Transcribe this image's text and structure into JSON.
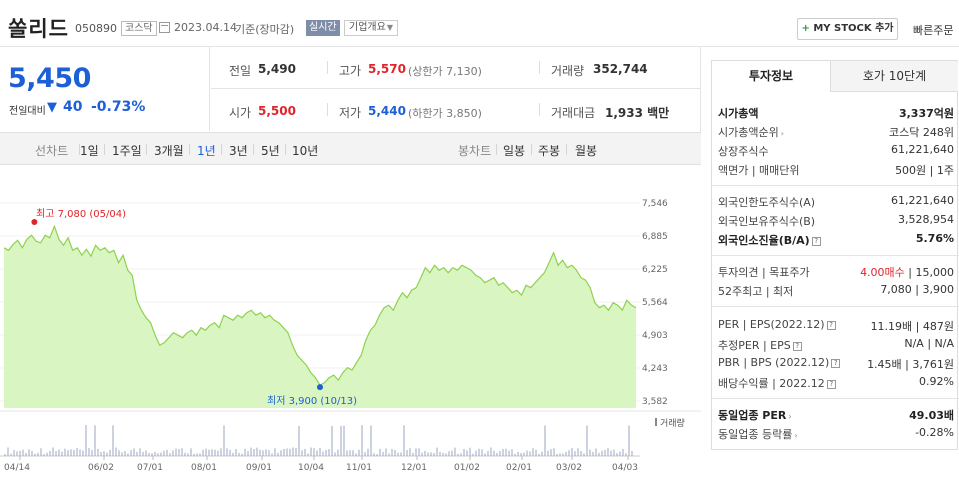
{
  "header": {
    "stock_name": "쏠리드",
    "stock_code": "050890",
    "market": "코스닥",
    "as_of_date": "2023.04.14",
    "as_of_suffix": "기준(장마감)",
    "realtime_label": "실시간",
    "company_overview": "기업개요",
    "my_stock_button": "MY STOCK 추가",
    "quick_order": "빠른주문"
  },
  "price": {
    "current": "5,450",
    "change_label": "전일대비",
    "change_value": "40",
    "change_rate": "-0.73%"
  },
  "quotes": {
    "prev_close_label": "전일",
    "prev_close": "5,490",
    "high_label": "고가",
    "high": "5,570",
    "upper_limit": "(상한가 7,130)",
    "volume_label": "거래량",
    "volume": "352,744",
    "open_label": "시가",
    "open": "5,500",
    "low_label": "저가",
    "low": "5,440",
    "lower_limit": "(하한가 3,850)",
    "amount_label": "거래대금",
    "amount": "1,933 백만"
  },
  "toolbar": {
    "line_chart": "선차트",
    "periods": [
      "1일",
      "1주일",
      "3개월",
      "1년",
      "3년",
      "5년",
      "10년"
    ],
    "selected_period": "1년",
    "candle_chart": "봉차트",
    "candles": [
      "일봉",
      "주봉",
      "월봉"
    ]
  },
  "chart_data": {
    "type": "area",
    "y_ticks": [
      "7,546",
      "6,885",
      "6,225",
      "5,564",
      "4,903",
      "4,243",
      "3,582"
    ],
    "ylim": [
      3582,
      7546
    ],
    "x_ticks": [
      "04/14",
      "06/02",
      "07/01",
      "08/01",
      "09/01",
      "10/04",
      "11/01",
      "12/01",
      "01/02",
      "02/01",
      "03/02",
      "04/03"
    ],
    "max_label": "최고 7,080 (05/04)",
    "min_label": "최저 3,900 (10/13)",
    "volume_legend": "거래량",
    "series_color": "#8fd14f",
    "fill_color": "#d9f5c2",
    "price": [
      6650,
      6600,
      6720,
      6800,
      6650,
      6820,
      6900,
      6780,
      6750,
      6900,
      6850,
      7080,
      6820,
      6700,
      6850,
      6600,
      6650,
      6500,
      6620,
      6480,
      6700,
      6600,
      6650,
      6550,
      6600,
      6350,
      6500,
      6200,
      6100,
      5600,
      5400,
      5250,
      5150,
      4900,
      4700,
      4750,
      4850,
      4950,
      4900,
      4850,
      4950,
      5000,
      4900,
      5050,
      5000,
      5100,
      5150,
      5050,
      5300,
      5250,
      5200,
      5300,
      5250,
      5350,
      5400,
      5300,
      5350,
      5250,
      5300,
      5200,
      5150,
      5050,
      4950,
      4700,
      4500,
      4400,
      4300,
      4150,
      4050,
      3900,
      3950,
      4050,
      4100,
      4000,
      4150,
      4250,
      4200,
      4350,
      4500,
      4800,
      5000,
      5100,
      5300,
      5450,
      5500,
      5400,
      5600,
      5750,
      5650,
      5800,
      5850,
      6050,
      6250,
      6150,
      6300,
      6200,
      6250,
      6150,
      6250,
      6200,
      6300,
      6250,
      6200,
      6100,
      6050,
      5950,
      6000,
      6050,
      5900,
      5950,
      5850,
      5750,
      5800,
      5700,
      5900,
      5850,
      5950,
      6050,
      6150,
      6350,
      6550,
      6300,
      6400,
      6250,
      6300,
      6200,
      6050,
      6000,
      5850,
      5550,
      5450,
      5500,
      5400,
      5550,
      5500,
      5400,
      5600,
      5500,
      5450
    ]
  },
  "right_panel": {
    "tabs": [
      "투자정보",
      "호가 10단계"
    ],
    "section1": [
      {
        "label": "시가총액",
        "value": "3,337억원"
      },
      {
        "label": "시가총액순위",
        "value": "코스닥 248위"
      },
      {
        "label": "상장주식수",
        "value": "61,221,640"
      },
      {
        "label": "액면가 | 매매단위",
        "value": "500원 | 1주"
      }
    ],
    "section2": [
      {
        "label": "외국인한도주식수(A)",
        "value": "61,221,640"
      },
      {
        "label": "외국인보유주식수(B)",
        "value": "3,528,954"
      },
      {
        "label": "외국인소진율(B/A)",
        "value": "5.76%"
      }
    ],
    "section3": [
      {
        "label": "투자의견 | 목표주가",
        "value_a": "4.00매수",
        "value_b": "| 15,000"
      },
      {
        "label": "52주최고 | 최저",
        "value": "7,080 | 3,900"
      }
    ],
    "section4": [
      {
        "label": "PER | EPS(2022.12)",
        "value": "11.19배 | 487원"
      },
      {
        "label": "추정PER | EPS",
        "value": "N/A | N/A"
      },
      {
        "label": "PBR | BPS (2022.12)",
        "value": "1.45배 | 3,761원"
      },
      {
        "label": "배당수익률 | 2022.12",
        "value": "0.92%"
      }
    ],
    "section5": [
      {
        "label": "동일업종 PER",
        "value": "49.03배"
      },
      {
        "label": "동일업종 등락률",
        "value": "-0.28%"
      }
    ]
  }
}
